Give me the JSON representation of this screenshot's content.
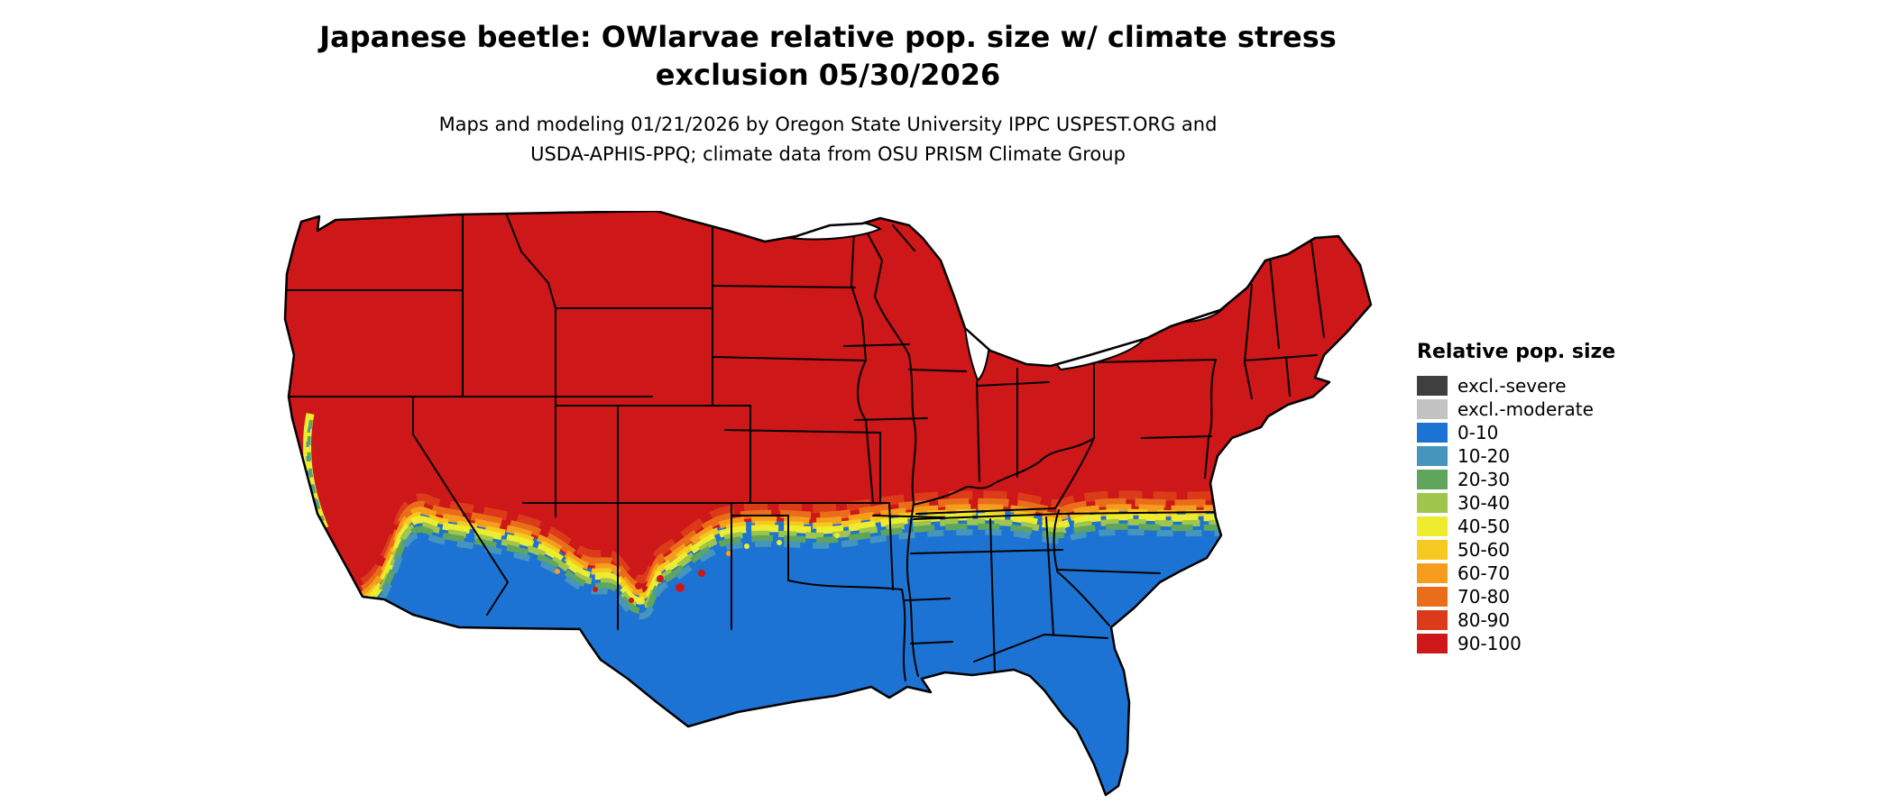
{
  "title": {
    "line1": "Japanese beetle: OWlarvae relative pop. size w/ climate stress",
    "line2": "exclusion 05/30/2026"
  },
  "subtitle": {
    "line1": "Maps and modeling 01/21/2026 by Oregon State University IPPC USPEST.ORG and",
    "line2": "USDA-APHIS-PPQ; climate data from OSU PRISM Climate Group"
  },
  "legend": {
    "title": "Relative pop. size",
    "items": [
      {
        "label": "excl.-severe",
        "color": "#3f3f3f"
      },
      {
        "label": "excl.-moderate",
        "color": "#c2c2c2"
      },
      {
        "label": "0-10",
        "color": "#1d73d3"
      },
      {
        "label": "10-20",
        "color": "#4695bc"
      },
      {
        "label": "20-30",
        "color": "#5fa55c"
      },
      {
        "label": "30-40",
        "color": "#9fc54d"
      },
      {
        "label": "40-50",
        "color": "#eeec2e"
      },
      {
        "label": "50-60",
        "color": "#f5c91f"
      },
      {
        "label": "60-70",
        "color": "#f69d1e"
      },
      {
        "label": "70-80",
        "color": "#ea6d1a"
      },
      {
        "label": "80-90",
        "color": "#dc3b1a"
      },
      {
        "label": "90-100",
        "color": "#cd1719"
      }
    ]
  },
  "map": {
    "region": "contiguous United States",
    "northern_region_class": "90-100",
    "southern_region_class": "0-10",
    "transition_band_classes": [
      "80-90",
      "70-80",
      "60-70",
      "50-60",
      "40-50",
      "30-40",
      "20-30",
      "10-20"
    ],
    "water_color": "#ffffff",
    "border_color": "#000000"
  }
}
